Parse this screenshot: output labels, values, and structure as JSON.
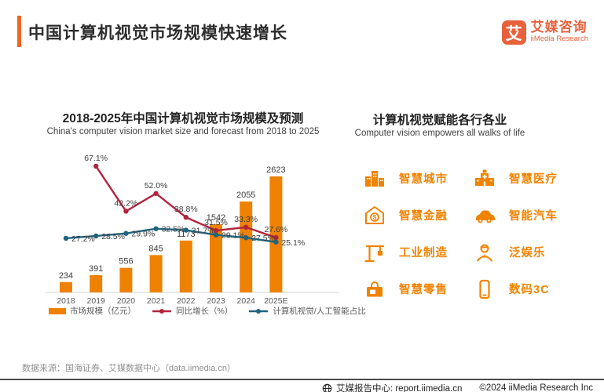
{
  "header": {
    "title": "中国计算机视觉市场规模快速增长",
    "logo": {
      "mark": "艾",
      "name_cn": "艾媒咨询",
      "name_en": "iiMedia Research"
    }
  },
  "chart": {
    "title": "2018-2025年中国计算机视觉市场规模及预测",
    "subtitle": "China's computer vision market size and forecast from 2018 to 2025",
    "legend": [
      "市场规模（亿元）",
      "同比增长（%）",
      "计算机视觉/人工智能占比"
    ]
  },
  "chart_data": {
    "type": "bar",
    "title": "2018-2025年中国计算机视觉市场规模及预测",
    "categories": [
      "2018",
      "2019",
      "2020",
      "2021",
      "2022",
      "2023",
      "2024",
      "2025E"
    ],
    "series": [
      {
        "name": "市场规模（亿元）",
        "type": "bar",
        "color": "#EE8200",
        "values": [
          234,
          391,
          556,
          845,
          1173,
          1542,
          2055,
          2623
        ]
      },
      {
        "name": "同比增长（%）",
        "type": "line",
        "color": "#B2243C",
        "unit": "%",
        "values": [
          null,
          67.1,
          42.2,
          52.0,
          38.8,
          31.5,
          33.3,
          27.6
        ]
      },
      {
        "name": "计算机视觉/人工智能占比",
        "type": "line",
        "color": "#21647E",
        "unit": "%",
        "values": [
          27.2,
          28.5,
          29.9,
          32.5,
          31.7,
          29.1,
          27.5,
          25.1
        ]
      }
    ],
    "ylim_bar": [
      0,
      2800
    ],
    "ylim_pct": [
      0,
      80
    ],
    "grid": false,
    "legend_position": "bottom"
  },
  "empower": {
    "title": "计算机视觉赋能各行各业",
    "subtitle": "Computer vision empowers all walks of life",
    "items": [
      {
        "icon": "city-icon",
        "label": "智慧城市"
      },
      {
        "icon": "hospital-icon",
        "label": "智慧医疗"
      },
      {
        "icon": "finance-icon",
        "label": "智慧金融"
      },
      {
        "icon": "car-icon",
        "label": "智能汽车"
      },
      {
        "icon": "crane-icon",
        "label": "工业制造"
      },
      {
        "icon": "entertainment-icon",
        "label": "泛娱乐"
      },
      {
        "icon": "retail-icon",
        "label": "智慧零售"
      },
      {
        "icon": "phone-icon",
        "label": "数码3C"
      }
    ]
  },
  "footer": {
    "source": "数据来源：国海证券、艾媒数据中心（data.iimedia.cn）"
  },
  "bottombar": {
    "report_center": "艾媒报告中心: report.iimedia.cn",
    "copyright": "©2024 iiMedia Research Inc"
  },
  "colors": {
    "accent_orange": "#F2661E",
    "bar_orange": "#EE8200",
    "growth_red": "#B2243C",
    "share_blue": "#21647E",
    "logo_orange": "#E8613B",
    "icon_orange": "#F08300"
  }
}
